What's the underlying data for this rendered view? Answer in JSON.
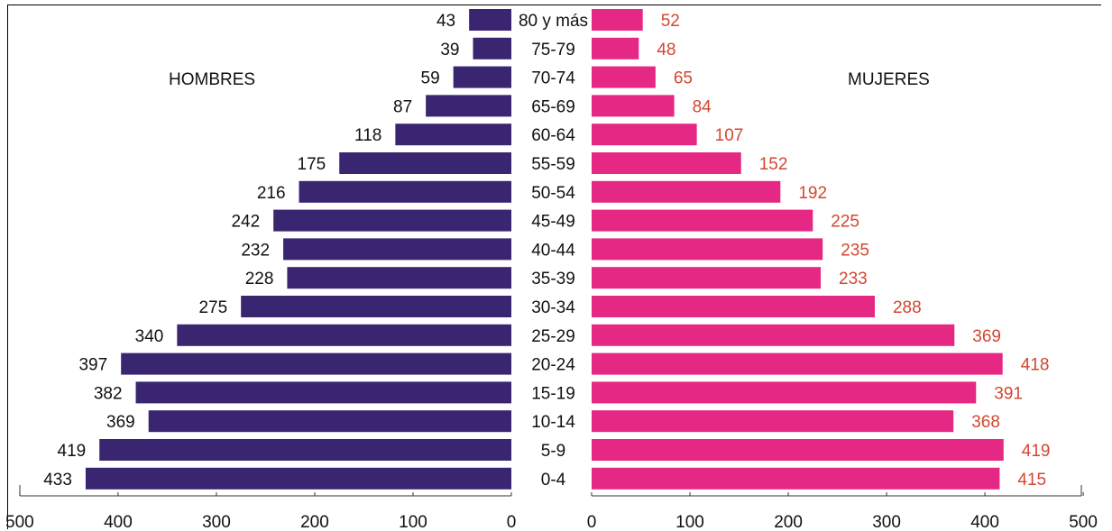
{
  "chart_data": {
    "type": "bar",
    "categories": [
      "80 y más",
      "75-79",
      "70-74",
      "65-69",
      "60-64",
      "55-59",
      "50-54",
      "45-49",
      "40-44",
      "35-39",
      "30-34",
      "25-29",
      "20-24",
      "15-19",
      "10-14",
      "5-9",
      "0-4"
    ],
    "series": [
      {
        "name": "HOMBRES",
        "values": [
          43,
          39,
          59,
          87,
          118,
          175,
          216,
          242,
          232,
          228,
          275,
          340,
          397,
          382,
          369,
          419,
          433
        ],
        "color": "#3a2570"
      },
      {
        "name": "MUJERES",
        "values": [
          52,
          48,
          65,
          84,
          107,
          152,
          192,
          225,
          235,
          233,
          288,
          369,
          418,
          391,
          368,
          419,
          415
        ],
        "color": "#e52883"
      }
    ],
    "xticks": [
      0,
      100,
      200,
      300,
      400,
      500
    ],
    "xlim": [
      0,
      500
    ],
    "male_label_color": "#111111",
    "female_label_color": "#d24730",
    "grid": false,
    "legend": "inline labels"
  }
}
